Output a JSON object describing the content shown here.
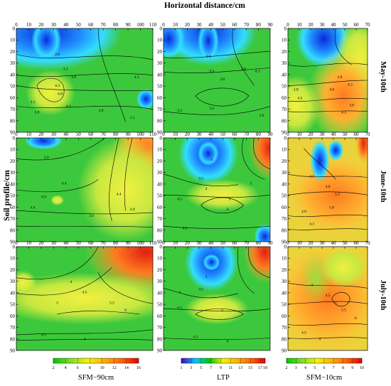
{
  "figure": {
    "top_title": "Horizontal distance/cm",
    "left_title": "Soil profile/cm",
    "row_labels": [
      "May-10th",
      "June-10th",
      "July-10th"
    ]
  },
  "chart_data": [
    {
      "type": "heatmap",
      "panel": "SFM-90cm / May-10th",
      "x_ticks": [
        0,
        10,
        20,
        30,
        40,
        50,
        60,
        70,
        80,
        90,
        100,
        110
      ],
      "y_ticks": [
        0,
        10,
        20,
        30,
        40,
        50,
        60,
        70,
        80,
        90
      ],
      "xlim": [
        0,
        110
      ],
      "ylim": [
        0,
        90
      ],
      "y_inverted": true,
      "contour_labels": [
        "2.8",
        "3.3",
        "3.8",
        "4.3",
        "4.8",
        "3.3",
        "3.8",
        "4.3",
        "3.8",
        "4.3",
        "5.1"
      ]
    },
    {
      "type": "heatmap",
      "panel": "LTP / May-10th",
      "x_ticks": [
        0,
        10,
        20,
        30,
        40,
        50,
        60,
        70,
        80,
        90
      ],
      "y_ticks": [
        0,
        10,
        20,
        30,
        40,
        50,
        60,
        70,
        80,
        90
      ],
      "xlim": [
        0,
        90
      ],
      "ylim": [
        0,
        90
      ],
      "y_inverted": true,
      "contour_labels": [
        "2.8",
        "3.3",
        "3.8",
        "3.8",
        "4.3",
        "3.3",
        "3.8",
        "3.8"
      ]
    },
    {
      "type": "heatmap",
      "panel": "SFM-10cm / May-10th",
      "x_ticks": [
        0,
        10,
        20,
        30,
        40,
        50,
        60,
        70
      ],
      "y_ticks": [
        0,
        10,
        20,
        30,
        40,
        50,
        60,
        70,
        80,
        90
      ],
      "xlim": [
        0,
        70
      ],
      "ylim": [
        0,
        90
      ],
      "y_inverted": true,
      "contour_labels": [
        "3.8",
        "4.3",
        "4.8",
        "3.8",
        "4.3",
        "3.8",
        "4.3"
      ]
    },
    {
      "type": "heatmap",
      "panel": "SFM-90cm / June-10th",
      "x_ticks": [
        0,
        10,
        20,
        30,
        40,
        50,
        60,
        70,
        80,
        90,
        100,
        110
      ],
      "y_ticks": [
        0,
        10,
        20,
        30,
        40,
        50,
        60,
        70,
        80,
        90
      ],
      "xlim": [
        0,
        110
      ],
      "ylim": [
        0,
        90
      ],
      "y_inverted": true,
      "contour_labels": [
        "3.9",
        "4.4",
        "4.9",
        "4.4",
        "4.9",
        "4.4",
        "3.9"
      ]
    },
    {
      "type": "heatmap",
      "panel": "LTP / June-10th",
      "x_ticks": [
        0,
        10,
        20,
        30,
        40,
        50,
        60,
        70,
        80,
        90
      ],
      "y_ticks": [
        0,
        10,
        20,
        30,
        40,
        50,
        60,
        70,
        80,
        90
      ],
      "xlim": [
        0,
        90
      ],
      "ylim": [
        0,
        90
      ],
      "y_inverted": true,
      "contour_labels": [
        "3",
        "3.5",
        "4",
        "4.5",
        "5",
        "4",
        "4.5",
        "5"
      ]
    },
    {
      "type": "heatmap",
      "panel": "SFM-10cm / June-10th",
      "x_ticks": [
        0,
        10,
        20,
        30,
        40,
        50,
        60,
        70
      ],
      "y_ticks": [
        0,
        10,
        20,
        30,
        40,
        50,
        60,
        70,
        80,
        90
      ],
      "xlim": [
        0,
        70
      ],
      "ylim": [
        0,
        90
      ],
      "y_inverted": true,
      "contour_labels": [
        "4.3",
        "4.8",
        "5.3",
        "5.8",
        "4.8",
        "4.3"
      ]
    },
    {
      "type": "heatmap",
      "panel": "SFM-90cm / July-10th",
      "x_ticks": [
        0,
        10,
        20,
        30,
        40,
        50,
        60,
        70,
        80,
        90,
        100,
        110
      ],
      "y_ticks": [
        0,
        10,
        20,
        30,
        40,
        50,
        60,
        70,
        80,
        90
      ],
      "xlim": [
        0,
        110
      ],
      "ylim": [
        0,
        90
      ],
      "y_inverted": true,
      "contour_labels": [
        "4",
        "4.5",
        "5",
        "5.5",
        "6",
        "4.5",
        "4"
      ]
    },
    {
      "type": "heatmap",
      "panel": "LTP / July-10th",
      "x_ticks": [
        0,
        10,
        20,
        30,
        40,
        50,
        60,
        70,
        80,
        90
      ],
      "y_ticks": [
        0,
        10,
        20,
        30,
        40,
        50,
        60,
        70,
        80,
        90
      ],
      "xlim": [
        0,
        90
      ],
      "ylim": [
        0,
        90
      ],
      "y_inverted": true,
      "contour_labels": [
        "3",
        "3.5",
        "4",
        "4.5",
        "5",
        "4.5",
        "4"
      ]
    },
    {
      "type": "heatmap",
      "panel": "SFM-10cm / July-10th",
      "x_ticks": [
        0,
        10,
        20,
        30,
        40,
        50,
        60,
        70
      ],
      "y_ticks": [
        0,
        10,
        20,
        30,
        40,
        50,
        60,
        70,
        80,
        90
      ],
      "xlim": [
        0,
        70
      ],
      "ylim": [
        0,
        90
      ],
      "y_inverted": true,
      "contour_labels": [
        "4",
        "4.5",
        "5",
        "5.5",
        "6",
        "4.5",
        "4"
      ]
    }
  ],
  "colorbars": [
    {
      "title": "SFM−90cm",
      "ticks": [
        "2",
        "4",
        "6",
        "8",
        "10",
        "12",
        "14",
        "16"
      ],
      "range": [
        2,
        16
      ],
      "colors": [
        "#00c800",
        "#7dde2c",
        "#f4f400",
        "#ffb000",
        "#ff6400",
        "#e60000"
      ]
    },
    {
      "title": "LTP",
      "ticks": [
        "1",
        "3",
        "5",
        "7",
        "9",
        "11",
        "13",
        "15",
        "17",
        "18"
      ],
      "range": [
        1,
        18
      ],
      "colors": [
        "#4a00c8",
        "#00c8ff",
        "#00c800",
        "#f4f400",
        "#ffb000",
        "#ff6400",
        "#e60000"
      ]
    },
    {
      "title": "SFM−10cm",
      "ticks": [
        "2",
        "3",
        "4",
        "5",
        "6",
        "7",
        "8",
        "9",
        "10"
      ],
      "range": [
        2,
        10
      ],
      "colors": [
        "#00c800",
        "#7dde2c",
        "#f4f400",
        "#ffb000",
        "#ff6400",
        "#e60000"
      ]
    }
  ],
  "colors": {
    "green": "#33cc33",
    "light_green": "#88dd33",
    "yellow": "#eeee33",
    "orange": "#ff9933",
    "cyan": "#33ddff",
    "blue": "#2233dd"
  }
}
